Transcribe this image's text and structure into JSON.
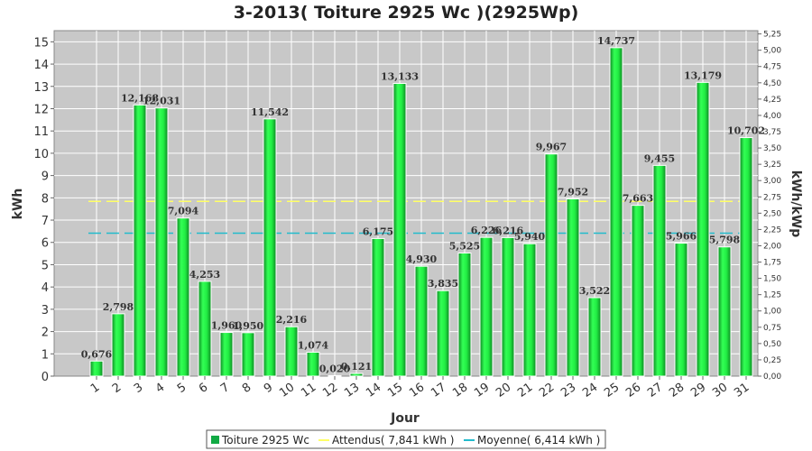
{
  "chart_data": {
    "type": "bar",
    "title": "3-2013( Toiture 2925 Wc )(2925Wp)",
    "xlabel": "Jour",
    "ylabel": "kWh",
    "ylabel_right": "kWh/kWp",
    "categories": [
      "1",
      "2",
      "3",
      "4",
      "5",
      "6",
      "7",
      "8",
      "9",
      "10",
      "11",
      "12",
      "13",
      "14",
      "15",
      "16",
      "17",
      "18",
      "19",
      "20",
      "21",
      "22",
      "23",
      "24",
      "25",
      "26",
      "27",
      "28",
      "29",
      "30",
      "31"
    ],
    "series": [
      {
        "name": "Toiture 2925 Wc",
        "color": "#22dd44",
        "values": [
          0.676,
          2.798,
          12.168,
          12.031,
          7.094,
          4.253,
          1.96,
          1.95,
          11.542,
          2.216,
          1.074,
          0.02,
          0.121,
          6.175,
          13.133,
          4.93,
          3.835,
          5.525,
          6.226,
          6.216,
          5.94,
          9.967,
          7.952,
          3.522,
          14.737,
          7.663,
          9.455,
          5.966,
          13.179,
          5.798,
          10.702
        ],
        "labels": [
          "0,676",
          "2,798",
          "12,168",
          "12,031",
          "7,094",
          "4,253",
          "1,960",
          "1,950",
          "11,542",
          "2,216",
          "1,074",
          "0,020",
          "0,121",
          "6,175",
          "13,133",
          "4,930",
          "3,835",
          "5,525",
          "6,226",
          "6,216",
          "5,940",
          "9,967",
          "7,952",
          "3,522",
          "14,737",
          "7,663",
          "9,455",
          "5,966",
          "13,179",
          "5,798",
          "10,702"
        ]
      }
    ],
    "reference_lines": [
      {
        "name": "Attendus( 7,841 kWh )",
        "value": 7.841,
        "color": "#ffff66"
      },
      {
        "name": "Moyenne( 6,414 kWh )",
        "value": 6.414,
        "color": "#22bbcc"
      }
    ],
    "ylim": [
      0,
      15.5
    ],
    "yticks": [
      "0",
      "1",
      "2",
      "3",
      "4",
      "5",
      "6",
      "7",
      "8",
      "9",
      "10",
      "11",
      "12",
      "13",
      "14",
      "15"
    ],
    "ylim_right": [
      0,
      5.3
    ],
    "yticks_right": [
      "0,00",
      "0,25",
      "0,50",
      "0,75",
      "1,00",
      "1,25",
      "1,50",
      "1,75",
      "2,00",
      "2,25",
      "2,50",
      "2,75",
      "3,00",
      "3,25",
      "3,50",
      "3,75",
      "4,00",
      "4,25",
      "4,50",
      "4,75",
      "5,00",
      "5,25"
    ],
    "grid": true,
    "legend_position": "bottom-center",
    "plot_background": "#c8c8c8"
  }
}
